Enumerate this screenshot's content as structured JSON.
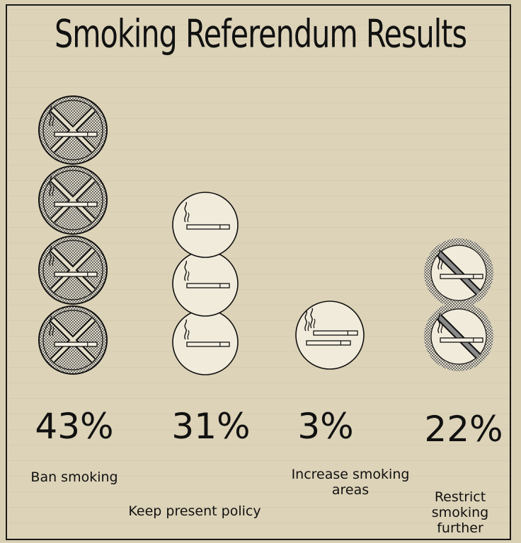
{
  "title": "Smoking Referendum Results",
  "chart_data": {
    "type": "bar",
    "title": "Smoking Referendum Results",
    "categories": [
      "Ban smoking",
      "Keep present policy",
      "Increase smoking areas",
      "Restrict smoking further"
    ],
    "values": [
      43,
      31,
      3,
      22
    ],
    "value_labels": [
      "43%",
      "31%",
      "3%",
      "22%"
    ],
    "icon_counts": [
      4,
      3,
      1,
      2
    ],
    "icon_types": [
      "ban-x",
      "cigarette",
      "two-cigarettes",
      "no-smoking"
    ],
    "unit": "%"
  },
  "colors": {
    "background": "#ddd3b8",
    "ink": "#111111",
    "hatch": "#7a7a7a"
  }
}
